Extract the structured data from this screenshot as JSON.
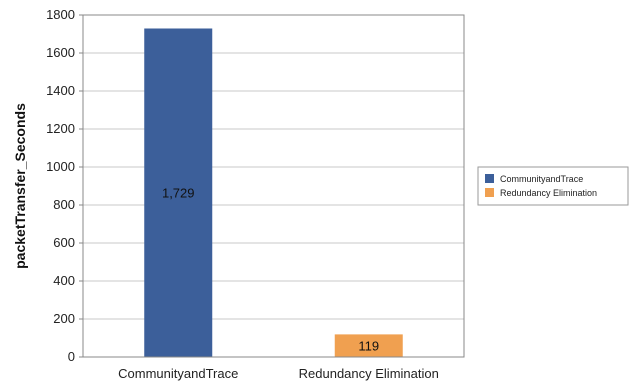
{
  "chart_data": {
    "type": "bar",
    "categories": [
      "CommunityandTrace",
      "Redundancy Elimination"
    ],
    "series": [
      {
        "name": "CommunityandTrace",
        "values": [
          1729,
          null
        ],
        "color": "#3c5f9a"
      },
      {
        "name": "Redundancy Elimination",
        "values": [
          null,
          119
        ],
        "color": "#f0a050"
      }
    ],
    "data_labels": [
      "1,729",
      "119"
    ],
    "ylabel": "packetTransfer_Seconds",
    "xlabel": "",
    "ylim": [
      0,
      1800
    ],
    "yticks": [
      0,
      200,
      400,
      600,
      800,
      1000,
      1200,
      1400,
      1600,
      1800
    ],
    "grid": true,
    "legend": "right"
  }
}
